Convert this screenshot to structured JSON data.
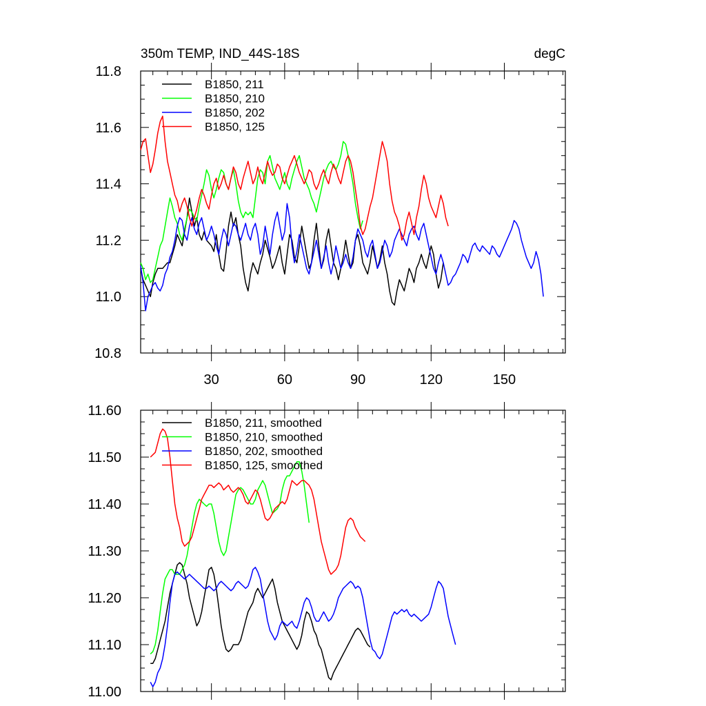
{
  "header": {
    "title": "350m TEMP, IND_44S-18S",
    "units": "degC"
  },
  "chart_data": [
    {
      "type": "line",
      "title": "350m TEMP, IND_44S-18S",
      "units": "degC",
      "xlabel": "",
      "ylabel": "",
      "xlim": [
        1,
        175
      ],
      "ylim": [
        10.8,
        11.8
      ],
      "x_ticks": [
        30,
        60,
        90,
        120,
        150
      ],
      "x_tick_labels": [
        "30",
        "60",
        "90",
        "120",
        "150"
      ],
      "y_ticks": [
        10.8,
        11.0,
        11.2,
        11.4,
        11.6,
        11.8
      ],
      "y_tick_labels": [
        "10.8",
        "11.0",
        "11.2",
        "11.4",
        "11.6",
        "11.8"
      ],
      "legend_position": "top-left",
      "series": [
        {
          "name": "B1850, 211",
          "color": "#000000",
          "x_start": 1,
          "values": [
            11.1,
            11.06,
            11.04,
            11.02,
            11.0,
            11.05,
            11.08,
            11.1,
            11.1,
            11.1,
            11.11,
            11.12,
            11.12,
            11.15,
            11.18,
            11.22,
            11.2,
            11.18,
            11.23,
            11.28,
            11.35,
            11.3,
            11.25,
            11.28,
            11.22,
            11.2,
            11.23,
            11.2,
            11.19,
            11.18,
            11.16,
            11.22,
            11.15,
            11.1,
            11.09,
            11.16,
            11.25,
            11.3,
            11.25,
            11.28,
            11.22,
            11.18,
            11.1,
            11.05,
            11.02,
            11.08,
            11.12,
            11.1,
            11.08,
            11.12,
            11.15,
            11.2,
            11.17,
            11.14,
            11.1,
            11.12,
            11.15,
            11.18,
            11.12,
            11.08,
            11.15,
            11.22,
            11.2,
            11.14,
            11.12,
            11.18,
            11.25,
            11.2,
            11.15,
            11.1,
            11.12,
            11.2,
            11.26,
            11.18,
            11.1,
            11.13,
            11.2,
            11.24,
            11.18,
            11.12,
            11.1,
            11.06,
            11.1,
            11.14,
            11.2,
            11.15,
            11.1,
            11.12,
            11.2,
            11.22,
            11.18,
            11.12,
            11.1,
            11.08,
            11.12,
            11.18,
            11.14,
            11.1,
            11.13,
            11.18,
            11.12,
            11.08,
            11.02,
            10.98,
            10.97,
            11.02,
            11.06,
            11.04,
            11.02,
            11.06,
            11.1,
            11.08,
            11.05,
            11.1,
            11.12,
            11.15,
            11.12,
            11.1,
            11.14,
            11.18,
            11.15,
            11.08,
            11.03,
            11.06,
            11.12
          ]
        },
        {
          "name": "B1850, 210",
          "color": "#00ff00",
          "x_start": 1,
          "values": [
            11.12,
            11.1,
            11.06,
            11.08,
            11.05,
            11.06,
            11.1,
            11.14,
            11.18,
            11.2,
            11.25,
            11.3,
            11.35,
            11.32,
            11.28,
            11.26,
            11.22,
            11.2,
            11.24,
            11.28,
            11.31,
            11.3,
            11.28,
            11.27,
            11.32,
            11.36,
            11.4,
            11.45,
            11.43,
            11.38,
            11.35,
            11.38,
            11.42,
            11.45,
            11.44,
            11.4,
            11.38,
            11.42,
            11.45,
            11.4,
            11.34,
            11.3,
            11.28,
            11.3,
            11.29,
            11.3,
            11.28,
            11.35,
            11.42,
            11.45,
            11.44,
            11.4,
            11.48,
            11.5,
            11.46,
            11.42,
            11.4,
            11.38,
            11.41,
            11.44,
            11.4,
            11.38,
            11.42,
            11.45,
            11.48,
            11.5,
            11.46,
            11.42,
            11.4,
            11.38,
            11.35,
            11.33,
            11.3,
            11.34,
            11.38,
            11.42,
            11.45,
            11.47,
            11.48,
            11.46,
            11.45,
            11.47,
            11.5,
            11.55,
            11.54,
            11.5,
            11.45,
            11.4,
            11.33,
            11.28,
            11.24,
            11.27
          ]
        },
        {
          "name": "B1850, 202",
          "color": "#0000ff",
          "x_start": 1,
          "values": [
            11.11,
            11.05,
            10.95,
            11.0,
            11.02,
            11.04,
            11.05,
            11.03,
            11.02,
            11.04,
            11.08,
            11.1,
            11.14,
            11.16,
            11.2,
            11.25,
            11.28,
            11.27,
            11.22,
            11.2,
            11.25,
            11.28,
            11.24,
            11.22,
            11.26,
            11.28,
            11.24,
            11.2,
            11.22,
            11.25,
            11.22,
            11.18,
            11.15,
            11.2,
            11.24,
            11.22,
            11.18,
            11.22,
            11.26,
            11.25,
            11.22,
            11.2,
            11.23,
            11.26,
            11.22,
            11.2,
            11.24,
            11.26,
            11.22,
            11.15,
            11.18,
            11.25,
            11.2,
            11.15,
            11.22,
            11.27,
            11.3,
            11.25,
            11.2,
            11.23,
            11.33,
            11.28,
            11.18,
            11.12,
            11.16,
            11.22,
            11.18,
            11.14,
            11.1,
            11.08,
            11.12,
            11.16,
            11.2,
            11.15,
            11.1,
            11.14,
            11.18,
            11.12,
            11.08,
            11.12,
            11.18,
            11.14,
            11.1,
            11.12,
            11.15,
            11.12,
            11.1,
            11.14,
            11.2,
            11.24,
            11.22,
            11.2,
            11.16,
            11.14,
            11.18,
            11.2,
            11.15,
            11.1,
            11.12,
            11.16,
            11.2,
            11.18,
            11.14,
            11.16,
            11.2,
            11.22,
            11.24,
            11.22,
            11.2,
            11.18,
            11.22,
            11.24,
            11.25,
            11.22,
            11.2,
            11.24,
            11.26,
            11.22,
            11.18,
            11.14,
            11.1,
            11.08,
            11.12,
            11.15,
            11.12,
            11.08,
            11.04,
            11.05,
            11.07,
            11.08,
            11.1,
            11.12,
            11.15,
            11.14,
            11.12,
            11.15,
            11.18,
            11.19,
            11.17,
            11.16,
            11.18,
            11.17,
            11.16,
            11.15,
            11.18,
            11.17,
            11.15,
            11.14,
            11.16,
            11.18,
            11.2,
            11.22,
            11.24,
            11.27,
            11.26,
            11.24,
            11.2,
            11.17,
            11.14,
            11.12,
            11.1,
            11.12,
            11.16,
            11.13,
            11.08,
            11.0
          ]
        },
        {
          "name": "B1850, 125",
          "color": "#ff0000",
          "x_start": 1,
          "values": [
            11.52,
            11.55,
            11.56,
            11.5,
            11.44,
            11.47,
            11.52,
            11.58,
            11.62,
            11.64,
            11.55,
            11.48,
            11.44,
            11.4,
            11.36,
            11.34,
            11.3,
            11.33,
            11.35,
            11.32,
            11.28,
            11.25,
            11.28,
            11.31,
            11.35,
            11.38,
            11.36,
            11.33,
            11.31,
            11.36,
            11.4,
            11.42,
            11.38,
            11.4,
            11.43,
            11.4,
            11.38,
            11.42,
            11.46,
            11.44,
            11.4,
            11.38,
            11.42,
            11.45,
            11.48,
            11.44,
            11.4,
            11.42,
            11.46,
            11.42,
            11.4,
            11.44,
            11.48,
            11.45,
            11.43,
            11.44,
            11.47,
            11.46,
            11.42,
            11.4,
            11.43,
            11.46,
            11.48,
            11.5,
            11.47,
            11.44,
            11.42,
            11.4,
            11.42,
            11.45,
            11.44,
            11.4,
            11.38,
            11.4,
            11.43,
            11.45,
            11.42,
            11.4,
            11.44,
            11.47,
            11.45,
            11.42,
            11.4,
            11.44,
            11.48,
            11.5,
            11.48,
            11.44,
            11.38,
            11.32,
            11.25,
            11.22,
            11.24,
            11.28,
            11.32,
            11.35,
            11.4,
            11.45,
            11.5,
            11.55,
            11.52,
            11.48,
            11.4,
            11.34,
            11.3,
            11.28,
            11.25,
            11.2,
            11.22,
            11.27,
            11.3,
            11.26,
            11.22,
            11.28,
            11.32,
            11.38,
            11.43,
            11.4,
            11.35,
            11.32,
            11.3,
            11.28,
            11.32,
            11.36,
            11.33,
            11.28,
            11.25
          ]
        }
      ]
    },
    {
      "type": "line",
      "title": "",
      "xlabel": "",
      "ylabel": "",
      "xlim": [
        1,
        175
      ],
      "ylim": [
        11.0,
        11.6
      ],
      "x_ticks": [
        30,
        60,
        90,
        120,
        150
      ],
      "y_ticks": [
        11.0,
        11.1,
        11.2,
        11.3,
        11.4,
        11.5,
        11.6
      ],
      "y_tick_labels": [
        "11.00",
        "11.10",
        "11.20",
        "11.30",
        "11.40",
        "11.50",
        "11.60"
      ],
      "legend_position": "top-left",
      "series": [
        {
          "name": "B1850, 211, smoothed",
          "color": "#000000",
          "x_start": 5,
          "values": [
            11.06,
            11.06,
            11.07,
            11.09,
            11.11,
            11.13,
            11.15,
            11.18,
            11.21,
            11.23,
            11.25,
            11.27,
            11.275,
            11.27,
            11.25,
            11.23,
            11.2,
            11.18,
            11.16,
            11.14,
            11.15,
            11.17,
            11.2,
            11.23,
            11.26,
            11.265,
            11.25,
            11.22,
            11.18,
            11.14,
            11.11,
            11.09,
            11.085,
            11.09,
            11.1,
            11.1,
            11.1,
            11.11,
            11.13,
            11.15,
            11.17,
            11.18,
            11.19,
            11.21,
            11.22,
            11.21,
            11.2,
            11.21,
            11.22,
            11.23,
            11.24,
            11.22,
            11.19,
            11.17,
            11.15,
            11.14,
            11.13,
            11.12,
            11.11,
            11.1,
            11.09,
            11.1,
            11.12,
            11.15,
            11.17,
            11.165,
            11.15,
            11.13,
            11.12,
            11.1,
            11.09,
            11.07,
            11.05,
            11.03,
            11.025,
            11.04,
            11.05,
            11.06,
            11.07,
            11.08,
            11.09,
            11.1,
            11.11,
            11.12,
            11.13,
            11.135,
            11.13,
            11.12,
            11.11,
            11.1,
            11.095
          ]
        },
        {
          "name": "B1850, 210, smoothed",
          "color": "#00ff00",
          "x_start": 5,
          "values": [
            11.08,
            11.085,
            11.1,
            11.13,
            11.17,
            11.21,
            11.24,
            11.25,
            11.26,
            11.26,
            11.25,
            11.25,
            11.25,
            11.26,
            11.27,
            11.29,
            11.32,
            11.35,
            11.38,
            11.4,
            11.41,
            11.405,
            11.4,
            11.395,
            11.4,
            11.4,
            11.38,
            11.35,
            11.32,
            11.3,
            11.29,
            11.3,
            11.33,
            11.36,
            11.39,
            11.42,
            11.43,
            11.435,
            11.43,
            11.42,
            11.41,
            11.4,
            11.4,
            11.41,
            11.43,
            11.44,
            11.45,
            11.44,
            11.42,
            11.4,
            11.38,
            11.385,
            11.39,
            11.4,
            11.43,
            11.45,
            11.46,
            11.46,
            11.47,
            11.48,
            11.49,
            11.49,
            11.47,
            11.44,
            11.4,
            11.36
          ]
        },
        {
          "name": "B1850, 202, smoothed",
          "color": "#0000ff",
          "x_start": 5,
          "values": [
            11.02,
            11.01,
            11.02,
            11.04,
            11.05,
            11.07,
            11.1,
            11.14,
            11.19,
            11.23,
            11.25,
            11.255,
            11.25,
            11.245,
            11.24,
            11.245,
            11.25,
            11.245,
            11.24,
            11.235,
            11.23,
            11.225,
            11.22,
            11.22,
            11.225,
            11.22,
            11.215,
            11.22,
            11.23,
            11.235,
            11.23,
            11.225,
            11.22,
            11.215,
            11.22,
            11.23,
            11.235,
            11.23,
            11.225,
            11.22,
            11.225,
            11.24,
            11.26,
            11.265,
            11.255,
            11.24,
            11.21,
            11.18,
            11.15,
            11.13,
            11.12,
            11.11,
            11.12,
            11.14,
            11.15,
            11.145,
            11.14,
            11.145,
            11.15,
            11.14,
            11.135,
            11.15,
            11.17,
            11.19,
            11.2,
            11.195,
            11.18,
            11.16,
            11.15,
            11.15,
            11.16,
            11.17,
            11.16,
            11.15,
            11.155,
            11.165,
            11.18,
            11.2,
            11.21,
            11.22,
            11.225,
            11.23,
            11.235,
            11.23,
            11.22,
            11.225,
            11.22,
            11.2,
            11.17,
            11.14,
            11.11,
            11.09,
            11.085,
            11.075,
            11.07,
            11.08,
            11.1,
            11.12,
            11.14,
            11.16,
            11.17,
            11.165,
            11.17,
            11.175,
            11.17,
            11.175,
            11.165,
            11.16,
            11.165,
            11.16,
            11.155,
            11.15,
            11.155,
            11.16,
            11.165,
            11.18,
            11.2,
            11.22,
            11.235,
            11.23,
            11.22,
            11.19,
            11.16,
            11.14,
            11.12,
            11.1
          ]
        },
        {
          "name": "B1850, 125, smoothed",
          "color": "#ff0000",
          "x_start": 5,
          "values": [
            11.5,
            11.505,
            11.51,
            11.53,
            11.55,
            11.56,
            11.555,
            11.54,
            11.5,
            11.45,
            11.4,
            11.37,
            11.35,
            11.32,
            11.31,
            11.315,
            11.32,
            11.33,
            11.35,
            11.37,
            11.39,
            11.41,
            11.42,
            11.43,
            11.44,
            11.44,
            11.435,
            11.44,
            11.445,
            11.44,
            11.43,
            11.435,
            11.44,
            11.43,
            11.425,
            11.43,
            11.435,
            11.43,
            11.42,
            11.405,
            11.4,
            11.41,
            11.42,
            11.43,
            11.425,
            11.41,
            11.39,
            11.37,
            11.365,
            11.37,
            11.38,
            11.39,
            11.395,
            11.4,
            11.405,
            11.4,
            11.41,
            11.43,
            11.45,
            11.445,
            11.44,
            11.445,
            11.45,
            11.45,
            11.445,
            11.44,
            11.43,
            11.41,
            11.38,
            11.35,
            11.32,
            11.3,
            11.28,
            11.26,
            11.25,
            11.255,
            11.26,
            11.27,
            11.29,
            11.32,
            11.35,
            11.365,
            11.37,
            11.365,
            11.35,
            11.34,
            11.33,
            11.325,
            11.32
          ]
        }
      ]
    }
  ]
}
